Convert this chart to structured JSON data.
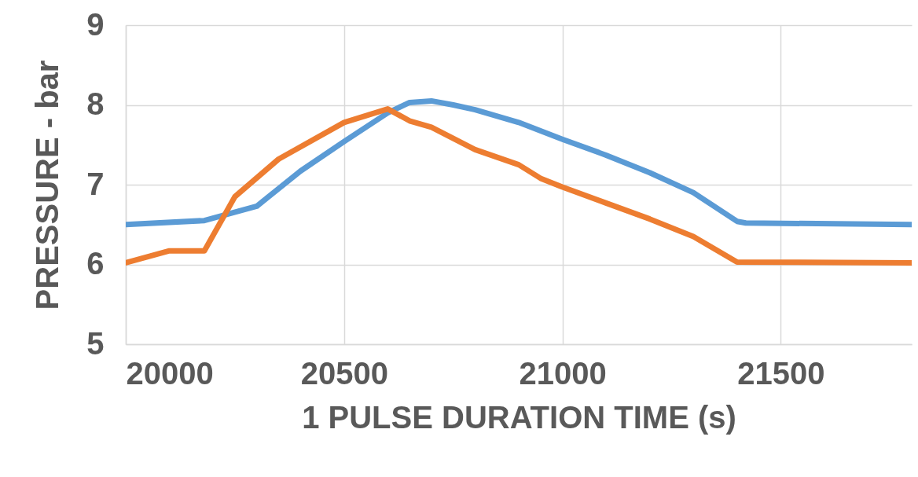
{
  "chart_data": {
    "type": "line",
    "xlabel": "1 PULSE DURATION TIME (s)",
    "ylabel": "PRESSURE - bar",
    "xlim": [
      20000,
      21800
    ],
    "xticks": [
      20000,
      20500,
      21000,
      21500
    ],
    "ylim": [
      5,
      9
    ],
    "yticks": [
      5,
      6,
      7,
      8,
      9
    ],
    "grid": true,
    "marker": "none",
    "line_style": "solid",
    "series": [
      {
        "color": "#5b9bd5",
        "x": [
          20000,
          20180,
          20300,
          20400,
          20500,
          20600,
          20650,
          20700,
          20750,
          20800,
          20900,
          21000,
          21100,
          21200,
          21300,
          21400,
          21420,
          21800
        ],
        "values": [
          6.5,
          6.55,
          6.73,
          7.17,
          7.54,
          7.9,
          8.03,
          8.05,
          8.0,
          7.94,
          7.78,
          7.57,
          7.37,
          7.15,
          6.9,
          6.54,
          6.52,
          6.5
        ]
      },
      {
        "color": "#ed7d31",
        "x": [
          20000,
          20100,
          20180,
          20250,
          20350,
          20500,
          20600,
          20650,
          20700,
          20800,
          20900,
          20950,
          21000,
          21100,
          21200,
          21300,
          21400,
          21800
        ],
        "values": [
          6.02,
          6.17,
          6.17,
          6.85,
          7.32,
          7.78,
          7.95,
          7.8,
          7.72,
          7.44,
          7.25,
          7.08,
          6.97,
          6.77,
          6.57,
          6.35,
          6.03,
          6.02
        ]
      }
    ]
  }
}
